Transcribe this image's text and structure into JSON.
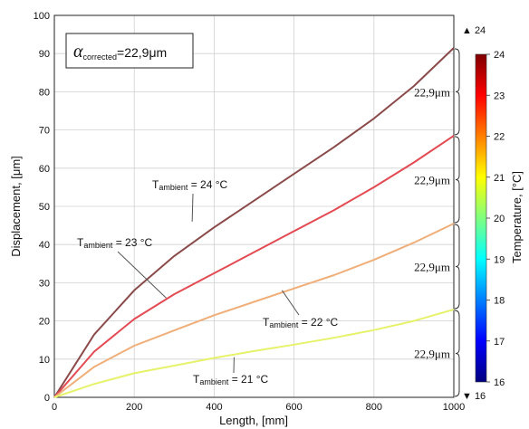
{
  "chart_data": {
    "type": "line",
    "xlabel": "Length, [mm]",
    "ylabel": "Displacement, [μm]",
    "xlim": [
      0,
      1000
    ],
    "ylim": [
      0,
      100
    ],
    "xticks": [
      "0",
      "200",
      "400",
      "600",
      "800",
      "1000"
    ],
    "yticks": [
      "0",
      "10",
      "20",
      "30",
      "40",
      "50",
      "60",
      "70",
      "80",
      "90",
      "100"
    ],
    "grid": true,
    "series": [
      {
        "color": "#8b4a4a",
        "x": [
          0,
          100,
          200,
          300,
          400,
          500,
          600,
          700,
          800,
          900,
          1000
        ],
        "y": [
          0,
          16.5,
          28,
          37,
          44.5,
          51.5,
          58.5,
          65.5,
          73,
          81.5,
          91.5
        ]
      },
      {
        "color": "#e34a52",
        "x": [
          0,
          100,
          200,
          300,
          400,
          500,
          600,
          700,
          800,
          900,
          1000
        ],
        "y": [
          0,
          12,
          20.5,
          27,
          32.5,
          38,
          43.5,
          49,
          55,
          61.5,
          68.5
        ]
      },
      {
        "color": "#f0ae78",
        "x": [
          0,
          100,
          200,
          300,
          400,
          500,
          600,
          700,
          800,
          900,
          1000
        ],
        "y": [
          0,
          8,
          13.5,
          17.5,
          21.5,
          25,
          28.5,
          32,
          36,
          40.5,
          45.5
        ]
      },
      {
        "color": "#e6f26a",
        "x": [
          0,
          100,
          200,
          300,
          400,
          500,
          600,
          700,
          800,
          900,
          1000
        ],
        "y": [
          0,
          3.5,
          6.3,
          8.3,
          10.3,
          12.1,
          13.8,
          15.6,
          17.6,
          20,
          23
        ]
      }
    ],
    "annotations": [
      {
        "main": "T",
        "sub": "ambient",
        "rest": " = 24 °C",
        "target": [
          345,
          46
        ]
      },
      {
        "main": "T",
        "sub": "ambient",
        "rest": " = 23 °C",
        "target": [
          280,
          26
        ]
      },
      {
        "main": "T",
        "sub": "ambient",
        "rest": " = 22 °C",
        "target": [
          570,
          28
        ]
      },
      {
        "main": "T",
        "sub": "ambient",
        "rest": " = 21 °C",
        "target": [
          450,
          10.5
        ]
      }
    ],
    "braces": [
      {
        "y_low": 68.5,
        "y_high": 91.5,
        "label": "22,9μm"
      },
      {
        "y_low": 45.5,
        "y_high": 68.5,
        "label": "22,9μm"
      },
      {
        "y_low": 23,
        "y_high": 45.5,
        "label": "22,9μm"
      },
      {
        "y_low": 0,
        "y_high": 23,
        "label": "22,9μm"
      }
    ],
    "inset": {
      "symbol": "α",
      "subscript": "corrected",
      "value": "=22,9μm"
    },
    "colorbar": {
      "label": "Temperature, [°C]",
      "min": 16,
      "max": 24,
      "ticks": [
        "16",
        "17",
        "18",
        "19",
        "20",
        "21",
        "22",
        "23",
        "24"
      ],
      "max_marker": "▲ 24",
      "min_marker": "▼ 16",
      "colors": [
        "#00007f",
        "#0000ff",
        "#007fff",
        "#00ffff",
        "#7fff7f",
        "#ffff00",
        "#ff7f00",
        "#ff0000",
        "#7f0000"
      ]
    }
  }
}
